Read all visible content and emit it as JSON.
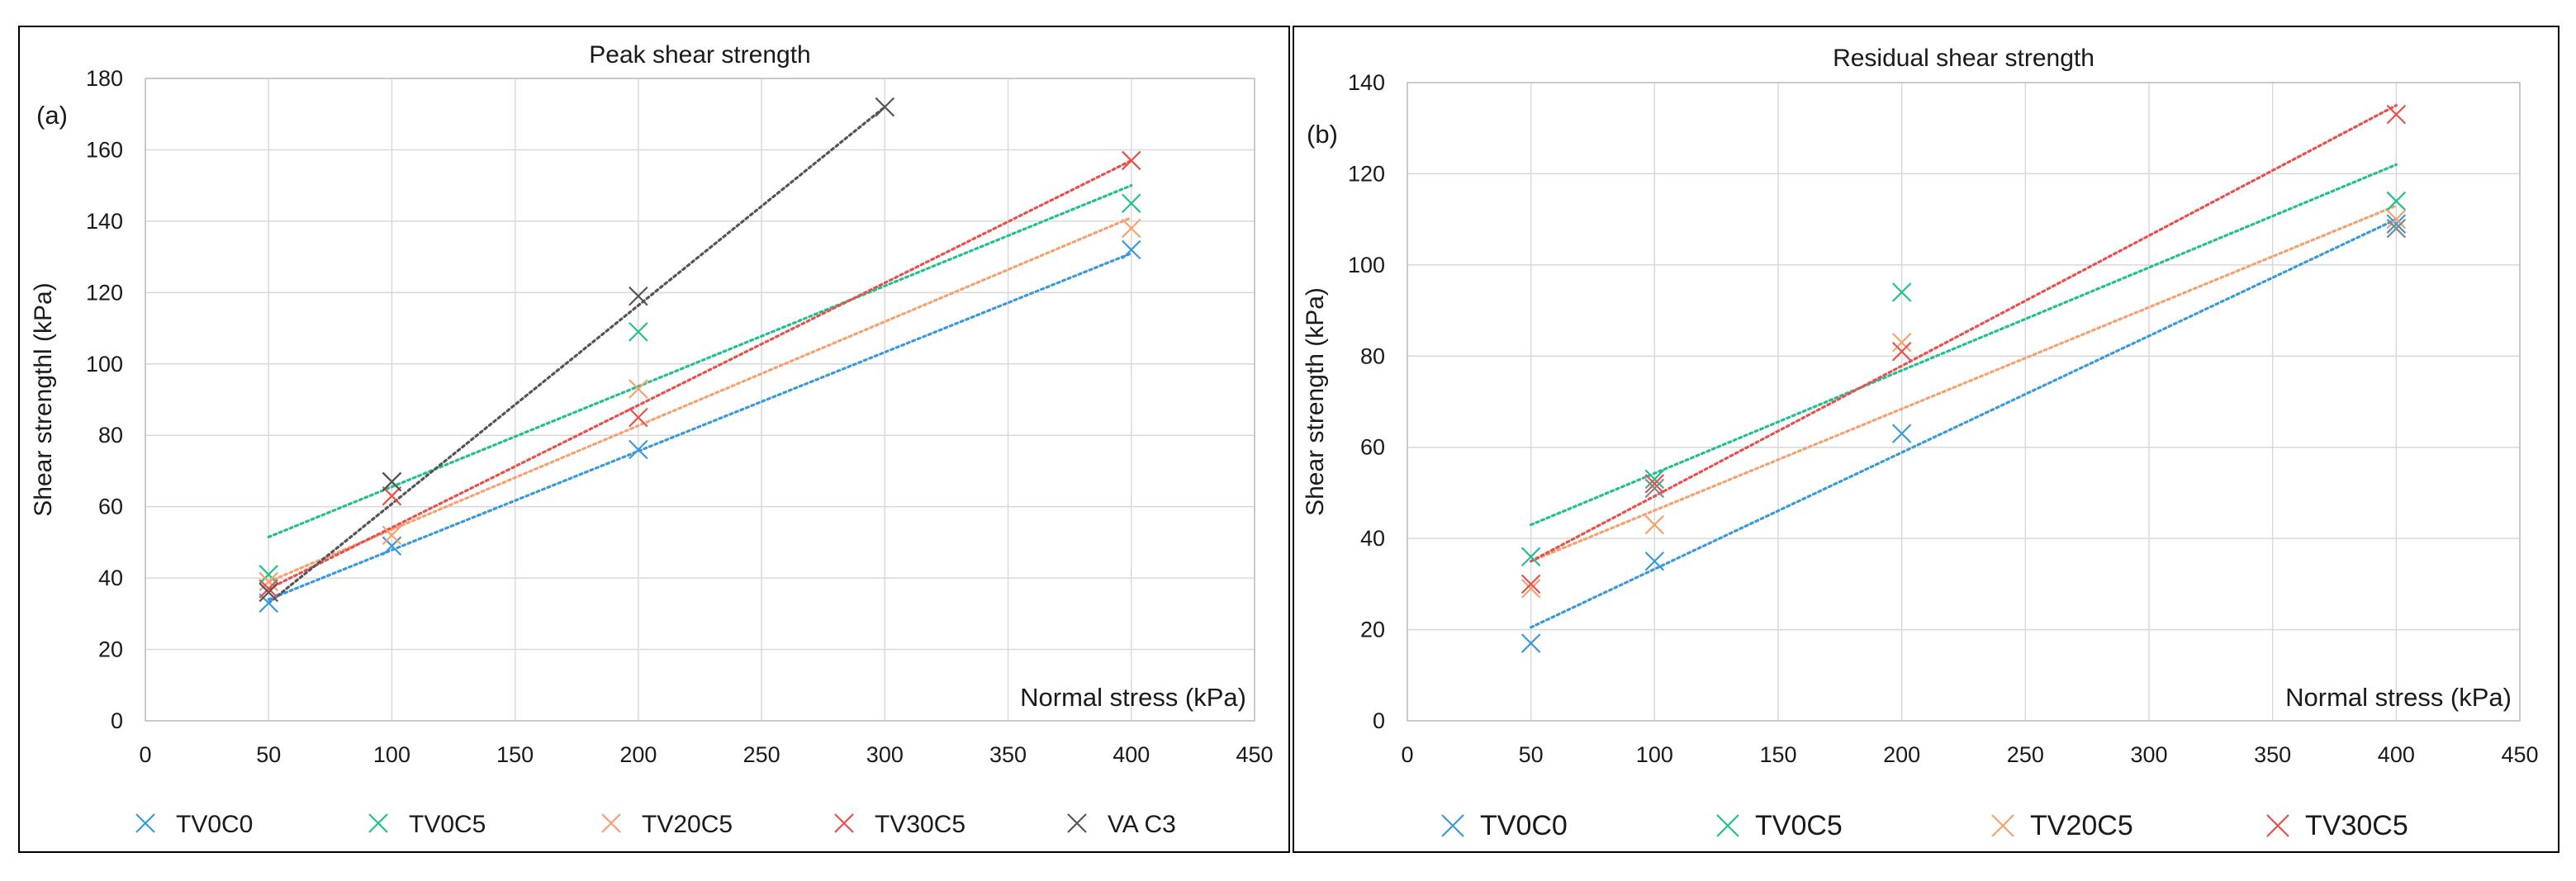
{
  "chart_data": [
    {
      "type": "scatter",
      "panel_label": "(a)",
      "title": "Peak shear strength",
      "xlabel": "Normal stress (kPa)",
      "ylabel": "Shear strengthl (kPa)",
      "xlim": [
        0,
        450
      ],
      "ylim": [
        0,
        180
      ],
      "xticks": [
        "0",
        "50",
        "100",
        "150",
        "200",
        "250",
        "300",
        "350",
        "400",
        "450"
      ],
      "yticks": [
        "0",
        "20",
        "40",
        "60",
        "80",
        "100",
        "120",
        "140",
        "160",
        "180"
      ],
      "grid": true,
      "legend_position": "bottom",
      "series": [
        {
          "name": "TV0C0",
          "color": "#3a9ad9",
          "x": [
            50,
            100,
            200,
            400
          ],
          "y": [
            33,
            49,
            76,
            132
          ],
          "trend": [
            [
              50,
              34
            ],
            [
              400,
              131
            ]
          ]
        },
        {
          "name": "TV0C5",
          "color": "#22c08e",
          "x": [
            50,
            100,
            200,
            400
          ],
          "y": [
            41,
            67,
            109,
            145
          ],
          "trend": [
            [
              50,
              51.5
            ],
            [
              400,
              150
            ]
          ]
        },
        {
          "name": "TV20C5",
          "color": "#f4a26f",
          "x": [
            50,
            100,
            200,
            400
          ],
          "y": [
            39,
            52,
            93,
            138
          ],
          "trend": [
            [
              50,
              39
            ],
            [
              400,
              141
            ]
          ]
        },
        {
          "name": "TV30C5",
          "color": "#e8504c",
          "x": [
            50,
            100,
            200,
            400
          ],
          "y": [
            37,
            63,
            85,
            157
          ],
          "trend": [
            [
              50,
              37
            ],
            [
              400,
              157
            ]
          ]
        },
        {
          "name": "VA C3",
          "color": "#555555",
          "x": [
            50,
            100,
            200,
            300
          ],
          "y": [
            36,
            67,
            119,
            172
          ],
          "trend": [
            [
              50,
              33
            ],
            [
              300,
              172
            ]
          ]
        }
      ]
    },
    {
      "type": "scatter",
      "panel_label": "(b)",
      "title": "Residual shear strength",
      "xlabel": "Normal stress (kPa)",
      "ylabel": "Shear strength (kPa)",
      "xlim": [
        0,
        450
      ],
      "ylim": [
        0,
        140
      ],
      "xticks": [
        "0",
        "50",
        "100",
        "150",
        "200",
        "250",
        "300",
        "350",
        "400",
        "450"
      ],
      "yticks": [
        "0",
        "20",
        "40",
        "60",
        "80",
        "100",
        "120",
        "140"
      ],
      "grid": true,
      "legend_position": "bottom",
      "series": [
        {
          "name": "TV0C0",
          "color": "#3a9ad9",
          "x": [
            50,
            100,
            200,
            400
          ],
          "y": [
            17,
            35,
            63,
            109
          ],
          "trend": [
            [
              50,
              20.5
            ],
            [
              400,
              110
            ]
          ]
        },
        {
          "name": "TV0C5",
          "color": "#22c08e",
          "x": [
            50,
            100,
            200,
            400
          ],
          "y": [
            36,
            53,
            94,
            114
          ],
          "trend": [
            [
              50,
              43
            ],
            [
              400,
              122
            ]
          ]
        },
        {
          "name": "TV20C5",
          "color": "#f4a26f",
          "x": [
            50,
            100,
            200,
            400
          ],
          "y": [
            29,
            43,
            83,
            110
          ],
          "trend": [
            [
              50,
              35
            ],
            [
              400,
              113
            ]
          ]
        },
        {
          "name": "TV30C5",
          "color": "#e8504c",
          "x": [
            50,
            100,
            200,
            400
          ],
          "y": [
            30,
            52,
            81,
            133
          ],
          "trend": [
            [
              50,
              35
            ],
            [
              400,
              135
            ]
          ]
        },
        {
          "name": "",
          "color": "#888888",
          "x": [
            100,
            400
          ],
          "y": [
            51,
            108
          ],
          "trend": null
        }
      ]
    }
  ]
}
